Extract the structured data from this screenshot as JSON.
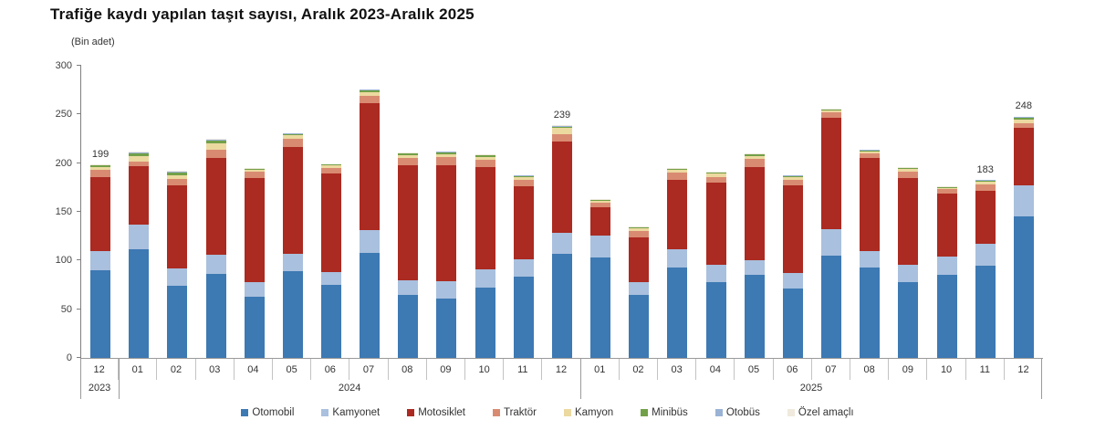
{
  "title": "Trafiğe kaydı yapılan taşıt sayısı, Aralık 2023-Aralık 2025",
  "unit_note": "(Bin adet)",
  "chart_data": {
    "type": "bar",
    "stacked": true,
    "title": "Trafiğe kaydı yapılan taşıt sayısı, Aralık 2023-Aralık 2025",
    "ylabel": "(Bin adet)",
    "ylim": [
      0,
      300
    ],
    "y_ticks": [
      0,
      50,
      100,
      150,
      200,
      250,
      300
    ],
    "grid": false,
    "legend_position": "bottom",
    "categories": [
      "12",
      "01",
      "02",
      "03",
      "04",
      "05",
      "06",
      "07",
      "08",
      "09",
      "10",
      "11",
      "12",
      "01",
      "02",
      "03",
      "04",
      "05",
      "06",
      "07",
      "08",
      "09",
      "10",
      "11",
      "12"
    ],
    "year_groups": [
      {
        "label": "2023",
        "span": 1
      },
      {
        "label": "2024",
        "span": 12
      },
      {
        "label": "2025",
        "span": 12
      }
    ],
    "series": [
      {
        "name": "Otomobil",
        "color": "#3d79b3",
        "values": [
          90,
          112,
          74,
          86,
          63,
          89,
          75,
          108,
          65,
          61,
          72,
          83,
          107,
          103,
          65,
          93,
          78,
          85,
          71,
          105,
          93,
          78,
          85,
          95,
          145
        ]
      },
      {
        "name": "Kamyonet",
        "color": "#a9c0de",
        "values": [
          20,
          25,
          18,
          20,
          15,
          18,
          13,
          23,
          15,
          18,
          19,
          18,
          21,
          23,
          13,
          19,
          18,
          15,
          16,
          27,
          17,
          18,
          19,
          22,
          32
        ]
      },
      {
        "name": "Motosiklet",
        "color": "#ab2a21",
        "values": [
          76,
          60,
          85,
          99,
          107,
          110,
          101,
          131,
          118,
          119,
          105,
          75,
          94,
          29,
          46,
          71,
          84,
          96,
          90,
          115,
          95,
          89,
          65,
          55,
          59
        ]
      },
      {
        "name": "Traktör",
        "color": "#d98b72",
        "values": [
          7,
          5,
          7,
          9,
          6,
          8,
          6,
          7,
          7,
          8,
          7,
          7,
          8,
          4,
          6,
          7,
          6,
          8,
          6,
          5,
          5,
          6,
          4,
          6,
          5
        ]
      },
      {
        "name": "Kamyon",
        "color": "#ecd9a0",
        "values": [
          3,
          5,
          4,
          6,
          2,
          4,
          2.5,
          4,
          3,
          3,
          3,
          3,
          6,
          2,
          3,
          3,
          3,
          3,
          3,
          2,
          2,
          3,
          1.5,
          3,
          4
        ]
      },
      {
        "name": "Minibüs",
        "color": "#72a048",
        "values": [
          1.5,
          3,
          2.5,
          3,
          1,
          1,
          1,
          2,
          2,
          2,
          2,
          1,
          1.5,
          1,
          1,
          1,
          1,
          2,
          1,
          1,
          1,
          1,
          1,
          1,
          2
        ]
      },
      {
        "name": "Otobüs",
        "color": "#9ab3d5",
        "values": [
          0.75,
          1,
          0.75,
          1,
          0.5,
          0.5,
          0.25,
          0.5,
          0.5,
          0.5,
          0.5,
          0.5,
          0.75,
          0.5,
          0.5,
          0.5,
          0.5,
          0.5,
          0.5,
          0.5,
          0.5,
          0.5,
          0.25,
          0.5,
          0.5
        ]
      },
      {
        "name": "Özel amaçlı",
        "color": "#efeadd",
        "values": [
          0.75,
          1,
          0.75,
          1,
          0.5,
          0.5,
          0.25,
          0.5,
          0.5,
          0.5,
          0.5,
          0.5,
          0.75,
          0.5,
          0.5,
          0.5,
          0.5,
          0.5,
          0.5,
          0.5,
          0.5,
          0.5,
          0.25,
          0.5,
          0.5
        ]
      }
    ],
    "totals": [
      199,
      212,
      192,
      225,
      195,
      231,
      199,
      276,
      211,
      212,
      209,
      188,
      239,
      163,
      135,
      195,
      191,
      210,
      188,
      256,
      214,
      196,
      176,
      183,
      248
    ],
    "value_labels": [
      {
        "index": 0,
        "text": "199"
      },
      {
        "index": 12,
        "text": "239"
      },
      {
        "index": 23,
        "text": "183"
      },
      {
        "index": 24,
        "text": "248"
      }
    ]
  }
}
